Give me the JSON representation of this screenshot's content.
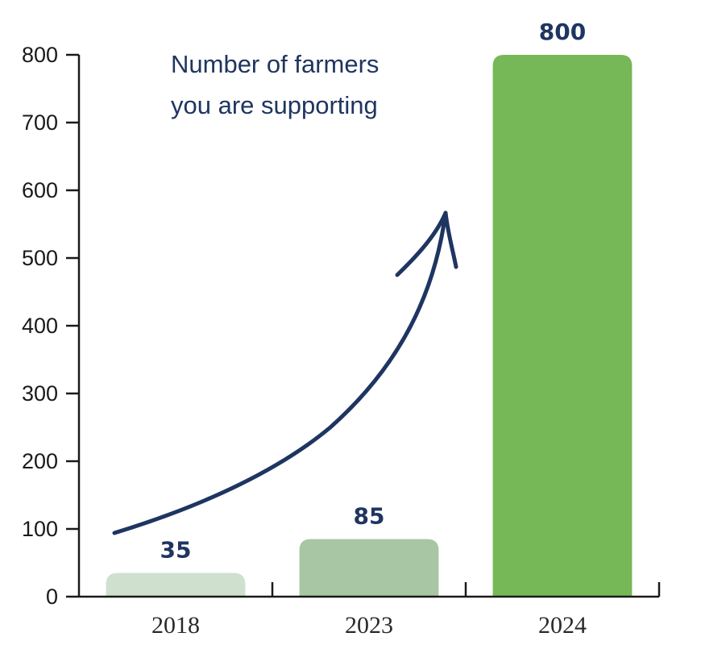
{
  "chart_data": {
    "type": "bar",
    "title": "",
    "xlabel": "",
    "ylabel": "",
    "categories": [
      "2018",
      "2023",
      "2024"
    ],
    "values": [
      35,
      85,
      800
    ],
    "value_labels": [
      "35",
      "85",
      "800"
    ],
    "ylim": [
      0,
      800
    ],
    "yticks": [
      0,
      100,
      200,
      300,
      400,
      500,
      600,
      700,
      800
    ],
    "ytick_labels": [
      "0",
      "100",
      "200",
      "300",
      "400",
      "500",
      "600",
      "700",
      "800"
    ],
    "grid": false,
    "legend": "none",
    "bar_colors": [
      "#cfe0cf",
      "#a8c6a3",
      "#76b757"
    ],
    "value_label_color": "#1f3561",
    "annotation": {
      "lines": [
        "Number of farmers",
        "you are supporting"
      ],
      "arrow": "upward-curved-arrow",
      "color": "#1f3561"
    }
  }
}
